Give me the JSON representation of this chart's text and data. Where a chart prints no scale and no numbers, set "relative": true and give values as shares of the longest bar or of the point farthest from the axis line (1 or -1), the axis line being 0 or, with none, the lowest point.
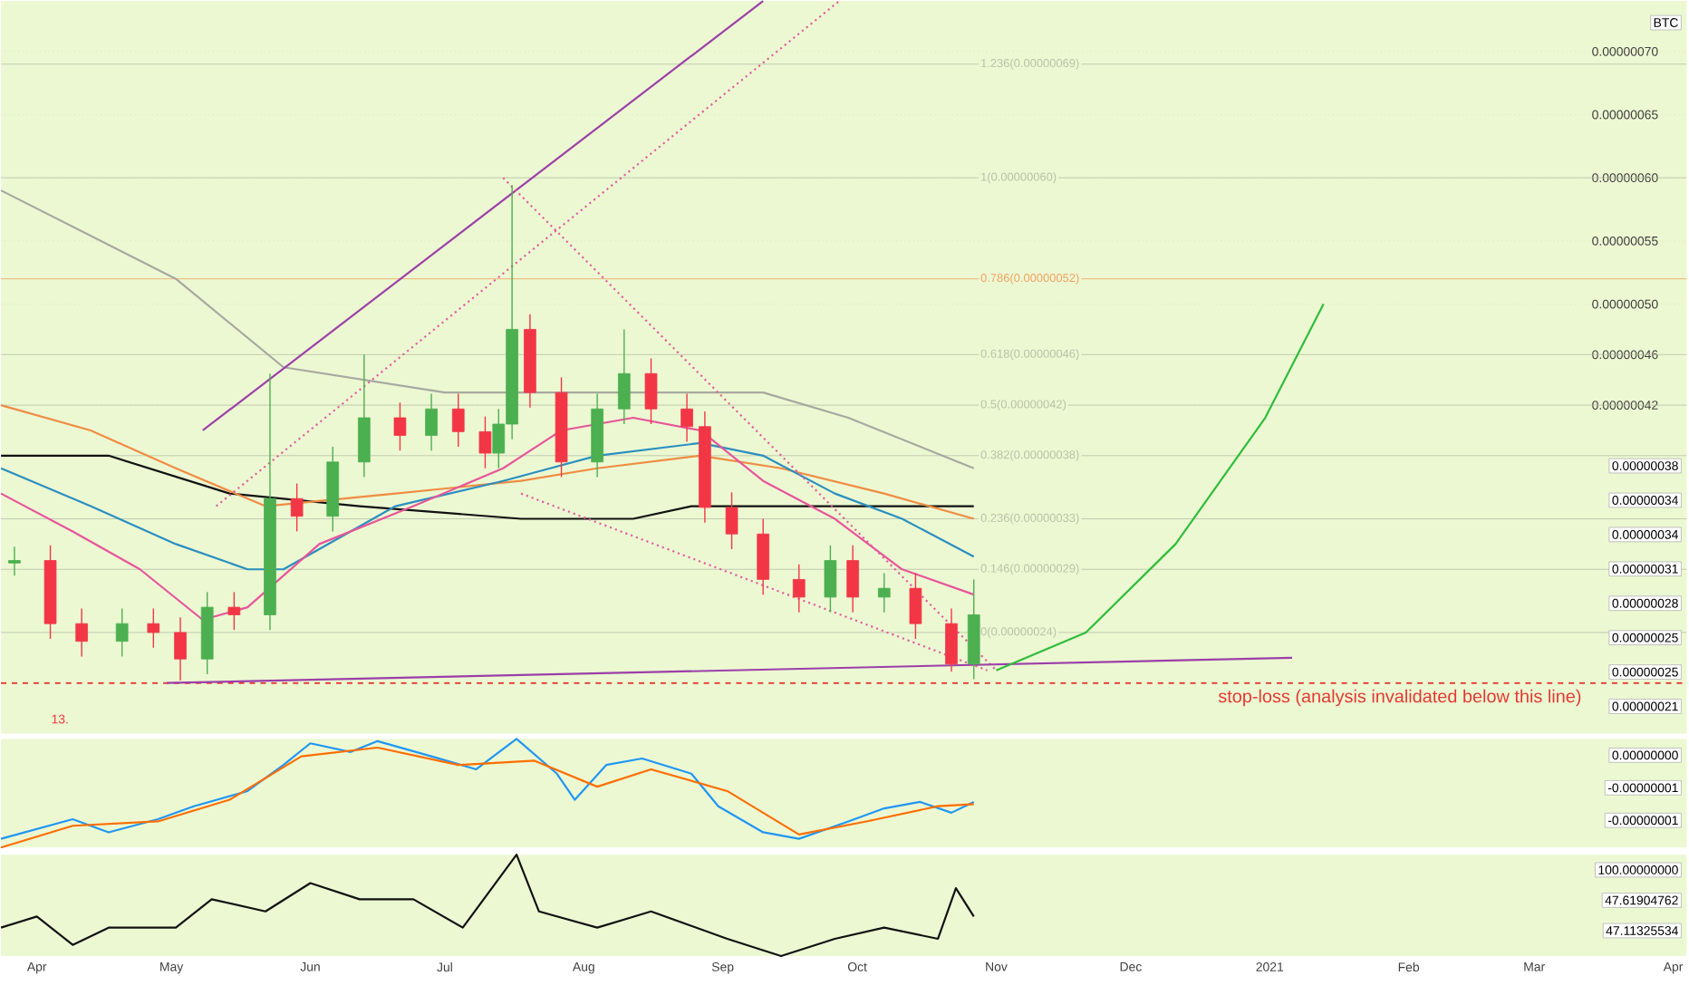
{
  "chart_data": [
    {
      "type": "candlestick",
      "x": [
        "2020-03-27",
        "2020-04-04",
        "2020-04-11",
        "2020-04-20",
        "2020-04-27",
        "2020-05-03",
        "2020-05-09",
        "2020-05-15",
        "2020-05-23",
        "2020-05-29",
        "2020-06-06",
        "2020-06-13",
        "2020-06-21",
        "2020-06-28",
        "2020-07-04",
        "2020-07-10",
        "2020-07-13",
        "2020-07-16",
        "2020-07-20",
        "2020-07-27",
        "2020-08-04",
        "2020-08-10",
        "2020-08-16",
        "2020-08-24",
        "2020-08-28",
        "2020-09-03",
        "2020-09-10",
        "2020-09-18",
        "2020-09-25",
        "2020-09-30",
        "2020-10-07",
        "2020-10-14",
        "2020-10-22",
        "2020-10-27"
      ],
      "ohlc": [
        [
          2.95e-07,
          3.08e-07,
          2.85e-07,
          2.97e-07
        ],
        [
          2.97e-07,
          3.09e-07,
          2.35e-07,
          2.47e-07
        ],
        [
          2.47e-07,
          2.59e-07,
          2.21e-07,
          2.33e-07
        ],
        [
          2.33e-07,
          2.59e-07,
          2.21e-07,
          2.47e-07
        ],
        [
          2.47e-07,
          2.59e-07,
          2.28e-07,
          2.4e-07
        ],
        [
          2.4e-07,
          2.52e-07,
          2.02e-07,
          2.19e-07
        ],
        [
          2.19e-07,
          2.72e-07,
          2.07e-07,
          2.6e-07
        ],
        [
          2.6e-07,
          2.72e-07,
          2.42e-07,
          2.54e-07
        ],
        [
          2.54e-07,
          4.45e-07,
          2.42e-07,
          3.46e-07
        ],
        [
          3.46e-07,
          3.58e-07,
          3.2e-07,
          3.32e-07
        ],
        [
          3.32e-07,
          3.87e-07,
          3.2e-07,
          3.75e-07
        ],
        [
          3.75e-07,
          4.6e-07,
          3.63e-07,
          4.1e-07
        ],
        [
          4.1e-07,
          4.22e-07,
          3.84e-07,
          3.96e-07
        ],
        [
          3.96e-07,
          4.29e-07,
          3.84e-07,
          4.17e-07
        ],
        [
          4.17e-07,
          4.29e-07,
          3.87e-07,
          3.99e-07
        ],
        [
          3.99e-07,
          4.11e-07,
          3.7e-07,
          3.82e-07
        ],
        [
          3.82e-07,
          4.17e-07,
          3.7e-07,
          4.05e-07
        ],
        [
          4.05e-07,
          5.94e-07,
          3.93e-07,
          4.8e-07
        ],
        [
          4.8e-07,
          4.92e-07,
          4.18e-07,
          4.3e-07
        ],
        [
          4.3e-07,
          4.42e-07,
          3.63e-07,
          3.75e-07
        ],
        [
          3.75e-07,
          4.29e-07,
          3.63e-07,
          4.17e-07
        ],
        [
          4.17e-07,
          4.8e-07,
          4.05e-07,
          4.45e-07
        ],
        [
          4.45e-07,
          4.57e-07,
          4.05e-07,
          4.17e-07
        ],
        [
          4.17e-07,
          4.29e-07,
          3.91e-07,
          4.03e-07
        ],
        [
          4.03e-07,
          4.15e-07,
          3.27e-07,
          3.39e-07
        ],
        [
          3.39e-07,
          3.51e-07,
          3.06e-07,
          3.18e-07
        ],
        [
          3.18e-07,
          3.3e-07,
          2.7e-07,
          2.82e-07
        ],
        [
          2.82e-07,
          2.94e-07,
          2.56e-07,
          2.68e-07
        ],
        [
          2.68e-07,
          3.09e-07,
          2.56e-07,
          2.97e-07
        ],
        [
          2.97e-07,
          3.09e-07,
          2.56e-07,
          2.68e-07
        ],
        [
          2.68e-07,
          2.87e-07,
          2.56e-07,
          2.75e-07
        ],
        [
          2.75e-07,
          2.87e-07,
          2.35e-07,
          2.47e-07
        ],
        [
          2.47e-07,
          2.59e-07,
          2.09e-07,
          2.15e-07
        ],
        [
          2.15e-07,
          2.82e-07,
          2.03e-07,
          2.54e-07
        ]
      ],
      "colors": [
        "#4caf50",
        "#f23645",
        "#f23645",
        "#4caf50",
        "#f23645",
        "#f23645",
        "#4caf50",
        "#f23645",
        "#4caf50",
        "#f23645",
        "#4caf50",
        "#4caf50",
        "#f23645",
        "#4caf50",
        "#f23645",
        "#f23645",
        "#4caf50",
        "#4caf50",
        "#f23645",
        "#f23645",
        "#4caf50",
        "#4caf50",
        "#f23645",
        "#f23645",
        "#f23645",
        "#f23645",
        "#f23645",
        "#f23645",
        "#4caf50",
        "#f23645",
        "#4caf50",
        "#f23645",
        "#f23645",
        "#4caf50"
      ],
      "series": [
        {
          "type": "line",
          "color": "#a8a8a0",
          "x": [
            "2020-03-24",
            "2020-05-02",
            "2020-05-26",
            "2020-07-01",
            "2020-08-12",
            "2020-09-10",
            "2020-09-29",
            "2020-10-27"
          ],
          "values": [
            5.9e-07,
            5.2e-07,
            4.5e-07,
            4.3e-07,
            4.3e-07,
            4.3e-07,
            4.1e-07,
            3.7e-07
          ]
        },
        {
          "type": "line",
          "color": "#111111",
          "x": [
            "2020-03-24",
            "2020-04-17",
            "2020-05-14",
            "2020-06-12",
            "2020-07-18",
            "2020-08-12",
            "2020-08-25",
            "2020-09-10",
            "2020-10-27"
          ],
          "values": [
            3.8e-07,
            3.8e-07,
            3.5e-07,
            3.4e-07,
            3.3e-07,
            3.3e-07,
            3.4e-07,
            3.4e-07,
            3.4e-07
          ]
        },
        {
          "type": "line",
          "color": "#f08c43",
          "x": [
            "2020-03-24",
            "2020-04-13",
            "2020-05-02",
            "2020-05-22",
            "2020-06-20",
            "2020-07-18",
            "2020-08-04",
            "2020-08-27",
            "2020-09-14",
            "2020-10-07",
            "2020-10-27"
          ],
          "values": [
            4.2e-07,
            4e-07,
            3.7e-07,
            3.4e-07,
            3.5e-07,
            3.6e-07,
            3.7e-07,
            3.8e-07,
            3.7e-07,
            3.5e-07,
            3.3e-07
          ]
        },
        {
          "type": "line",
          "color": "#2a8fc0",
          "x": [
            "2020-03-24",
            "2020-04-13",
            "2020-05-02",
            "2020-05-18",
            "2020-05-26",
            "2020-06-20",
            "2020-07-14",
            "2020-08-04",
            "2020-08-27",
            "2020-09-10",
            "2020-09-26",
            "2020-10-11",
            "2020-10-27"
          ],
          "values": [
            3.7e-07,
            3.4e-07,
            3.1e-07,
            2.9e-07,
            2.9e-07,
            3.4e-07,
            3.6e-07,
            3.8e-07,
            3.9e-07,
            3.8e-07,
            3.5e-07,
            3.3e-07,
            3e-07
          ]
        },
        {
          "type": "line",
          "color": "#e7559a",
          "x": [
            "2020-03-24",
            "2020-04-09",
            "2020-04-24",
            "2020-05-08",
            "2020-05-18",
            "2020-06-03",
            "2020-06-24",
            "2020-07-14",
            "2020-07-27",
            "2020-08-12",
            "2020-08-27",
            "2020-09-10",
            "2020-09-26",
            "2020-10-11",
            "2020-10-27"
          ],
          "values": [
            3.5e-07,
            3.2e-07,
            2.9e-07,
            2.5e-07,
            2.6e-07,
            3.1e-07,
            3.4e-07,
            3.7e-07,
            4e-07,
            4.1e-07,
            4e-07,
            3.6e-07,
            3.3e-07,
            2.9e-07,
            2.7e-07
          ]
        },
        {
          "type": "line",
          "color": "#9c3fa8",
          "x": [
            "2020-05-08",
            "2020-09-10"
          ],
          "values": [
            4e-07,
            7.4e-07
          ]
        },
        {
          "type": "line",
          "color": "#e060a0",
          "line_style": "dotted",
          "x": [
            "2020-05-11",
            "2020-09-27"
          ],
          "values": [
            3.4e-07,
            7.4e-07
          ]
        },
        {
          "type": "line",
          "color": "#e060a0",
          "line_style": "dotted",
          "x": [
            "2020-07-14",
            "2020-11-01"
          ],
          "values": [
            6e-07,
            2.1e-07
          ]
        },
        {
          "type": "line",
          "color": "#e060a0",
          "line_style": "dotted",
          "x": [
            "2020-07-18",
            "2020-10-30"
          ],
          "values": [
            3.5e-07,
            2.1e-07
          ]
        },
        {
          "type": "line",
          "color": "#9c3fa8",
          "x": [
            "2020-04-30",
            "2021-01-06"
          ],
          "values": [
            2e-07,
            2.2e-07
          ]
        },
        {
          "type": "line",
          "color": "#2ebd3a",
          "x": [
            "2020-11-01",
            "2020-11-21",
            "2020-12-11",
            "2020-12-31",
            "2021-01-13"
          ],
          "values": [
            2.1e-07,
            2.4e-07,
            3.1e-07,
            4.1e-07,
            5e-07
          ]
        }
      ],
      "xlim": [
        "2020-03-24",
        "2021-04-04"
      ],
      "ylim": [
        1.6e-07,
        7.4e-07
      ],
      "yticks": [
        {
          "value": 4.2e-07,
          "label": "0.00000042"
        },
        {
          "value": 4.6e-07,
          "label": "0.00000046"
        },
        {
          "value": 5e-07,
          "label": "0.00000050"
        },
        {
          "value": 5.5e-07,
          "label": "0.00000055"
        },
        {
          "value": 6e-07,
          "label": "0.00000060"
        },
        {
          "value": 6.5e-07,
          "label": "0.00000065"
        },
        {
          "value": 7e-07,
          "label": "0.00000070"
        }
      ],
      "tick_labels": "y",
      "grid": "y",
      "ref_lines": [
        {
          "axis": "y",
          "value": 6.9e-07,
          "label": "1.236(0.00000069)",
          "color": "#b8c0a8"
        },
        {
          "axis": "y",
          "value": 6e-07,
          "label": "1(0.00000060)",
          "color": "#b8c0a8"
        },
        {
          "axis": "y",
          "value": 5.2e-07,
          "label": "0.786(0.00000052)",
          "color": "#f0a060"
        },
        {
          "axis": "y",
          "value": 4.6e-07,
          "label": "0.618(0.00000046)",
          "color": "#b8c0a8"
        },
        {
          "axis": "y",
          "value": 4.2e-07,
          "label": "0.5(0.00000042)",
          "color": "#b8c0a8"
        },
        {
          "axis": "y",
          "value": 3.8e-07,
          "label": "0.382(0.00000038)",
          "color": "#b8c0a8"
        },
        {
          "axis": "y",
          "value": 3.3e-07,
          "label": "0.236(0.00000033)",
          "color": "#b8c0a8"
        },
        {
          "axis": "y",
          "value": 2.9e-07,
          "label": "0.146(0.00000029)",
          "color": "#b8c0a8"
        },
        {
          "axis": "y",
          "value": 2.4e-07,
          "label": "0(0.00000024)",
          "color": "#b8c0a8"
        },
        {
          "axis": "y",
          "value": 2e-07,
          "label": "stop-loss (analysis invalidated below this line)",
          "color": "#e53935",
          "line_style": "dashed"
        }
      ],
      "annotations": [
        "BTC",
        "13.",
        "0.00000038",
        "0.00000034",
        "0.00000034",
        "0.00000031",
        "0.00000028",
        "0.00000025",
        "0.00000025",
        "0.00000021"
      ]
    },
    {
      "type": "line",
      "relative": true,
      "tick_labels": false,
      "series": [
        {
          "color": "#2196f3",
          "x": [
            "2020-03-24",
            "2020-04-09",
            "2020-04-17",
            "2020-04-28",
            "2020-05-06",
            "2020-05-18",
            "2020-05-26",
            "2020-06-01",
            "2020-06-10",
            "2020-06-16",
            "2020-06-28",
            "2020-07-08",
            "2020-07-17",
            "2020-07-26",
            "2020-07-30",
            "2020-08-06",
            "2020-08-14",
            "2020-08-25",
            "2020-08-31",
            "2020-09-10",
            "2020-09-18",
            "2020-09-29",
            "2020-10-07",
            "2020-10-15",
            "2020-10-22",
            "2020-10-27"
          ],
          "values": [
            0.08,
            0.26,
            0.14,
            0.26,
            0.38,
            0.52,
            0.76,
            0.96,
            0.88,
            0.98,
            0.84,
            0.72,
            1,
            0.68,
            0.44,
            0.76,
            0.82,
            0.68,
            0.38,
            0.14,
            0.08,
            0.24,
            0.36,
            0.42,
            0.32,
            0.42
          ]
        },
        {
          "color": "#ff6d00",
          "x": [
            "2020-03-24",
            "2020-04-09",
            "2020-04-28",
            "2020-05-14",
            "2020-05-30",
            "2020-06-16",
            "2020-07-04",
            "2020-07-21",
            "2020-08-04",
            "2020-08-16",
            "2020-09-02",
            "2020-09-18",
            "2020-10-03",
            "2020-10-19",
            "2020-10-27"
          ],
          "values": [
            0,
            0.2,
            0.24,
            0.44,
            0.84,
            0.92,
            0.76,
            0.8,
            0.56,
            0.72,
            0.52,
            0.12,
            0.24,
            0.38,
            0.4
          ]
        }
      ],
      "xlim": [
        "2020-03-24",
        "2021-04-04"
      ],
      "annotations": [
        "0.00000000",
        "-0.00000001",
        "-0.00000001"
      ]
    },
    {
      "type": "line",
      "relative": true,
      "tick_labels": "x",
      "series": [
        {
          "color": "#111111",
          "x": [
            "2020-03-24",
            "2020-04-01",
            "2020-04-09",
            "2020-04-17",
            "2020-05-02",
            "2020-05-10",
            "2020-05-22",
            "2020-06-01",
            "2020-06-12",
            "2020-06-24",
            "2020-07-05",
            "2020-07-17",
            "2020-07-22",
            "2020-08-04",
            "2020-08-16",
            "2020-09-02",
            "2020-09-14",
            "2020-09-26",
            "2020-10-07",
            "2020-10-19",
            "2020-10-23",
            "2020-10-27"
          ],
          "values": [
            0.28,
            0.39,
            0.11,
            0.28,
            0.28,
            0.56,
            0.44,
            0.72,
            0.56,
            0.56,
            0.28,
            1,
            0.44,
            0.28,
            0.44,
            0.17,
            0,
            0.17,
            0.28,
            0.17,
            0.67,
            0.39
          ]
        }
      ],
      "xlim": [
        "2020-03-24",
        "2021-04-04"
      ],
      "xticks": [
        {
          "value": "2020-04-01",
          "label": "Apr"
        },
        {
          "value": "2020-05-01",
          "label": "May"
        },
        {
          "value": "2020-06-01",
          "label": "Jun"
        },
        {
          "value": "2020-07-01",
          "label": "Jul"
        },
        {
          "value": "2020-08-01",
          "label": "Aug"
        },
        {
          "value": "2020-09-01",
          "label": "Sep"
        },
        {
          "value": "2020-10-01",
          "label": "Oct"
        },
        {
          "value": "2020-11-01",
          "label": "Nov"
        },
        {
          "value": "2020-12-01",
          "label": "Dec"
        },
        {
          "value": "2021-01-01",
          "label": "2021"
        },
        {
          "value": "2021-02-01",
          "label": "Feb"
        },
        {
          "value": "2021-03-01",
          "label": "Mar"
        },
        {
          "value": "2021-04-01",
          "label": "Apr"
        }
      ],
      "annotations": [
        "100.00000000",
        "47.61904762",
        "47.11325534"
      ]
    }
  ]
}
